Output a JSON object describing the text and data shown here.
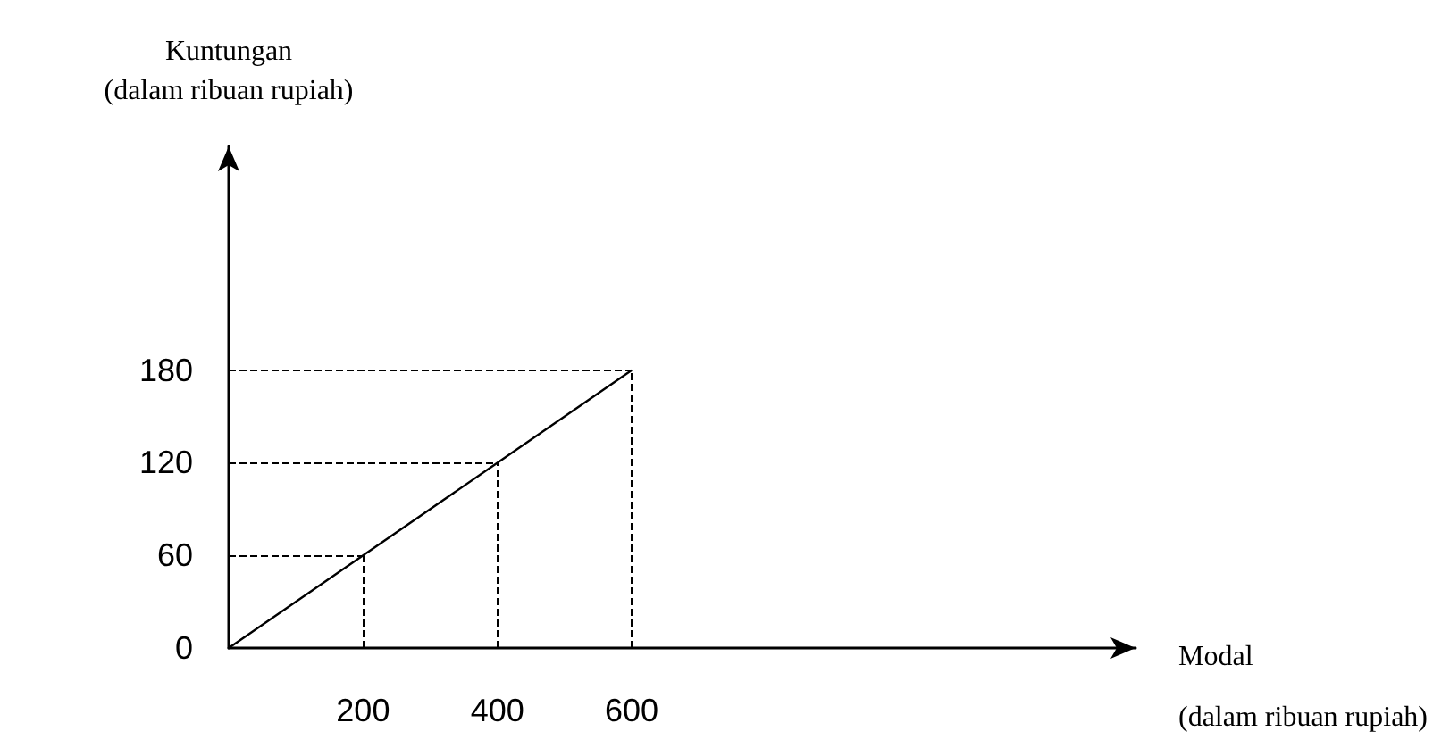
{
  "chart_data": {
    "type": "line",
    "xlabel": "Modal\n(dalam ribuan rupiah)",
    "ylabel": "Kuntungan\n(dalam ribuan rupiah)",
    "x": [
      0,
      200,
      400,
      600
    ],
    "series": [
      {
        "color": "#000000",
        "values": [
          0,
          60,
          120,
          180
        ]
      }
    ],
    "xlim": [
      0,
      1350
    ],
    "xticks": [
      200,
      400,
      600
    ],
    "ylim": [
      0,
      325
    ],
    "yticks": [
      0,
      60,
      120,
      180
    ],
    "ref_lines": [
      {
        "axis": "x",
        "value": 200,
        "color": "#000000",
        "line_style": "dashed"
      },
      {
        "axis": "x",
        "value": 400,
        "color": "#000000",
        "line_style": "dashed"
      },
      {
        "axis": "x",
        "value": 600,
        "color": "#000000",
        "line_style": "dashed"
      },
      {
        "axis": "y",
        "value": 60,
        "color": "#000000",
        "line_style": "dashed"
      },
      {
        "axis": "y",
        "value": 120,
        "color": "#000000",
        "line_style": "dashed"
      },
      {
        "axis": "y",
        "value": 180,
        "color": "#000000",
        "line_style": "dashed"
      }
    ],
    "grid": false,
    "marker": "none",
    "line_style": "solid"
  }
}
